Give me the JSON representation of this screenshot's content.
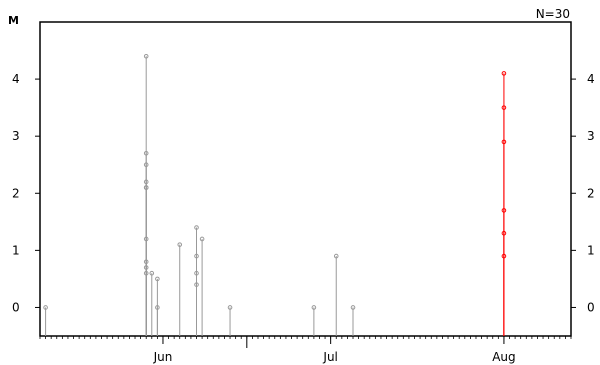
{
  "chart_data": {
    "type": "scatter",
    "ylabel": "M",
    "annotation": "N=30",
    "ylim": [
      -0.5,
      5
    ],
    "yticks": [
      0,
      1,
      2,
      3,
      4
    ],
    "xlim": [
      "2019-05-10",
      "2019-08-13"
    ],
    "x_tick_labels": [
      {
        "label": "Jun",
        "date": "2019-06-01"
      },
      {
        "label": "Jul",
        "date": "2019-07-01"
      },
      {
        "label": "Aug",
        "date": "2019-08-01"
      }
    ],
    "grid": false,
    "colors": {
      "past": "#999999",
      "recent": "#ff0000"
    },
    "series": [
      {
        "color": "#999999",
        "points": [
          {
            "x": "2019-05-11",
            "y": 0.0
          },
          {
            "x": "2019-05-29",
            "y": 4.4
          },
          {
            "x": "2019-05-29",
            "y": 2.1
          },
          {
            "x": "2019-05-29",
            "y": 0.8
          },
          {
            "x": "2019-05-29",
            "y": 2.7
          },
          {
            "x": "2019-05-29",
            "y": 2.5
          },
          {
            "x": "2019-05-29",
            "y": 2.2
          },
          {
            "x": "2019-05-29",
            "y": 2.1
          },
          {
            "x": "2019-05-29",
            "y": 1.2
          },
          {
            "x": "2019-05-29",
            "y": 0.6
          },
          {
            "x": "2019-05-29",
            "y": 0.7
          },
          {
            "x": "2019-05-30",
            "y": 0.6
          },
          {
            "x": "2019-05-31",
            "y": 0.5
          },
          {
            "x": "2019-05-31",
            "y": 0.0
          },
          {
            "x": "2019-06-04",
            "y": 1.1
          },
          {
            "x": "2019-06-07",
            "y": 1.4
          },
          {
            "x": "2019-06-07",
            "y": 0.9
          },
          {
            "x": "2019-06-07",
            "y": 0.6
          },
          {
            "x": "2019-06-07",
            "y": 0.4
          },
          {
            "x": "2019-06-08",
            "y": 1.2
          },
          {
            "x": "2019-06-13",
            "y": 0.0
          },
          {
            "x": "2019-06-28",
            "y": 0.0
          },
          {
            "x": "2019-07-02",
            "y": 0.9
          },
          {
            "x": "2019-07-05",
            "y": 0.0
          }
        ]
      },
      {
        "color": "#ff0000",
        "points": [
          {
            "x": "2019-08-01",
            "y": 4.1
          },
          {
            "x": "2019-08-01",
            "y": 3.5
          },
          {
            "x": "2019-08-01",
            "y": 2.9
          },
          {
            "x": "2019-08-01",
            "y": 1.7
          },
          {
            "x": "2019-08-01",
            "y": 1.3
          },
          {
            "x": "2019-08-01",
            "y": 0.9
          }
        ]
      }
    ]
  }
}
